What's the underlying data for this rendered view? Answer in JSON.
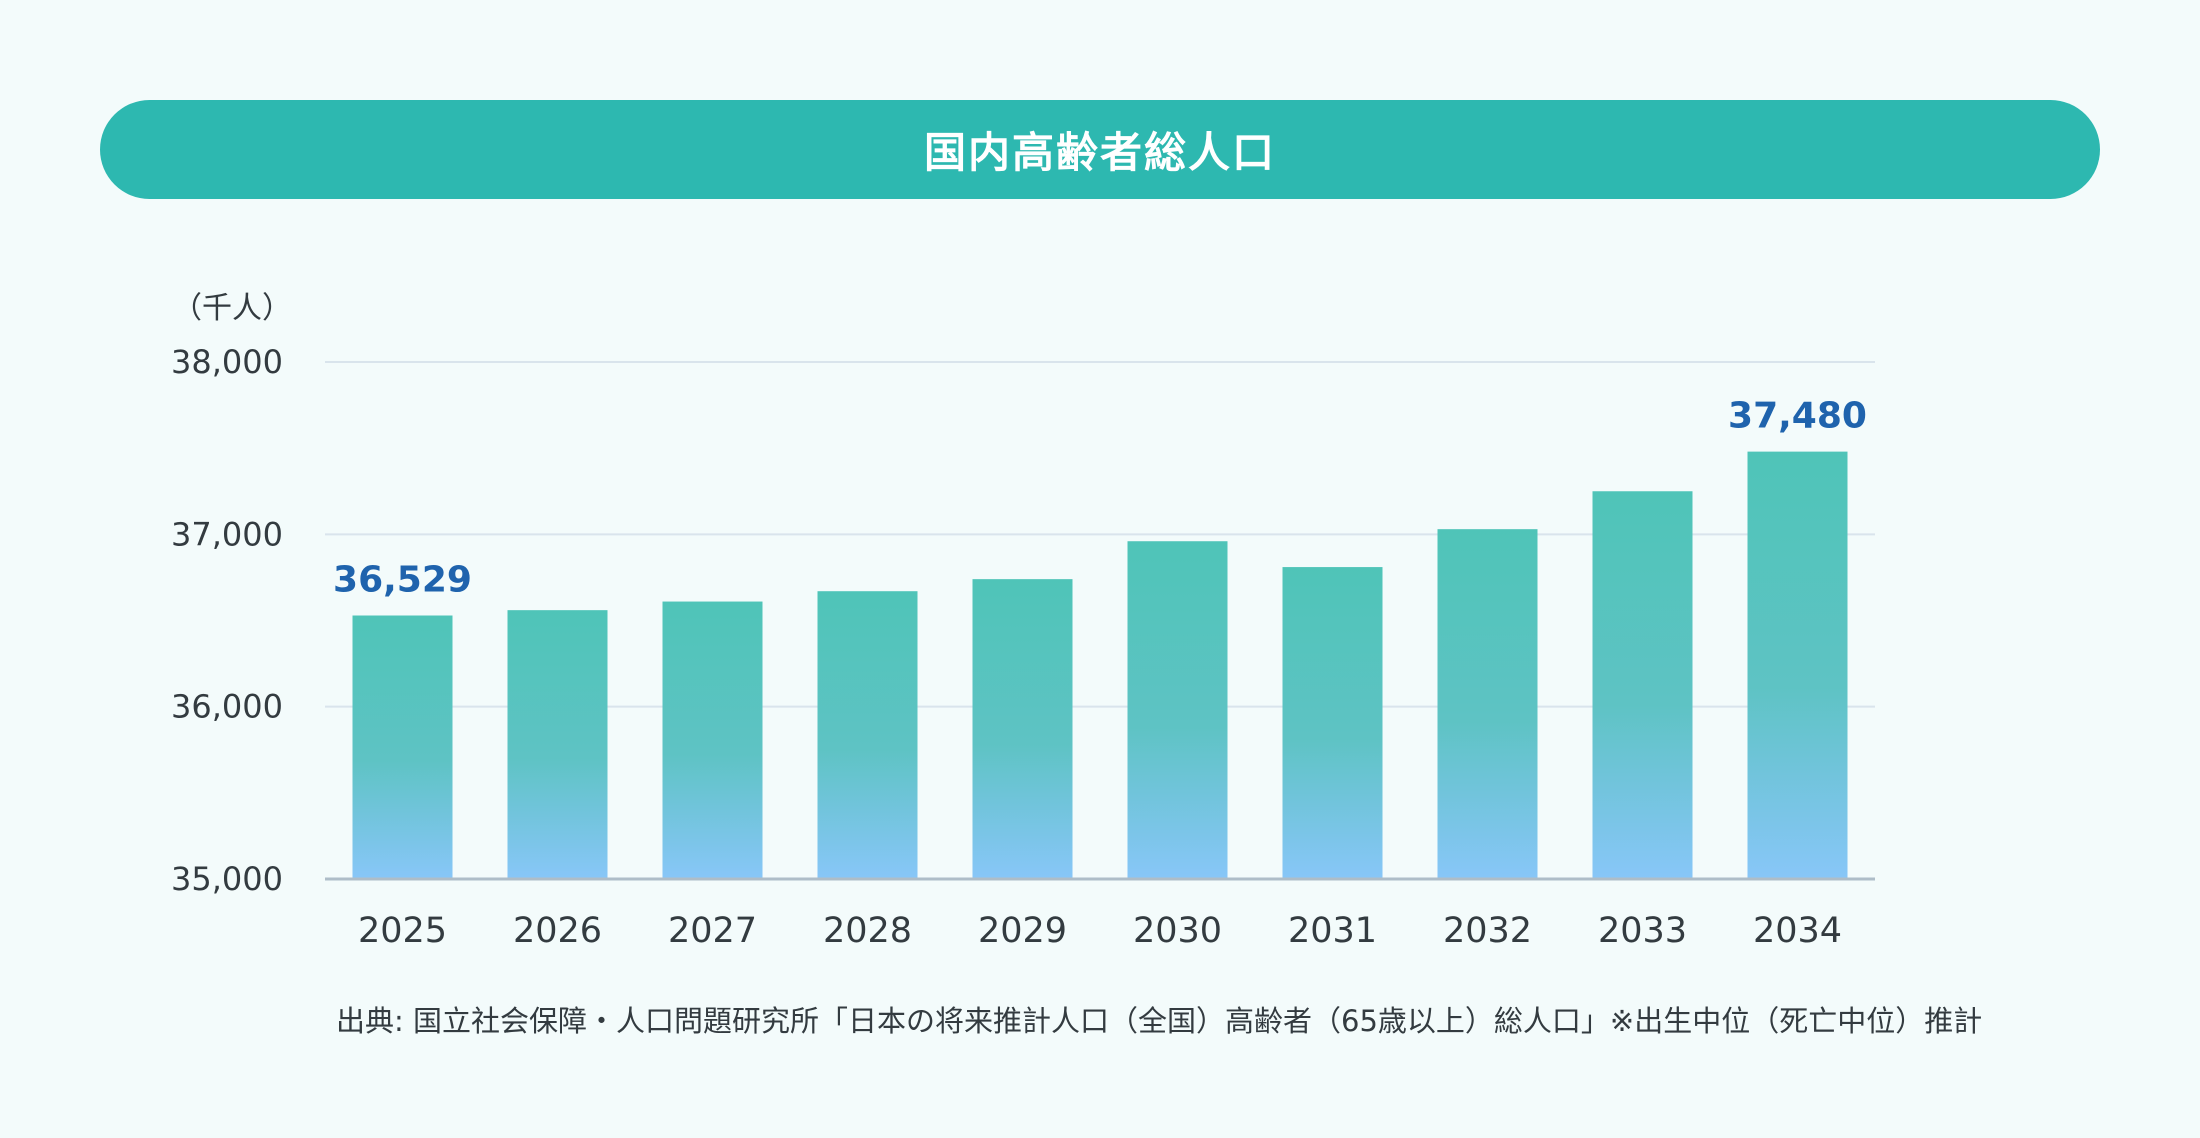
{
  "chart_data": {
    "type": "bar",
    "title": "国内高齢者総人口",
    "unit_label": "（千人）",
    "categories": [
      "2025",
      "2026",
      "2027",
      "2028",
      "2029",
      "2030",
      "2031",
      "2032",
      "2033",
      "2034"
    ],
    "values": [
      36529,
      36560,
      36610,
      36670,
      36740,
      36960,
      36810,
      37030,
      37250,
      37480
    ],
    "data_labels": [
      {
        "index": 0,
        "text": "36,529"
      },
      {
        "index": 9,
        "text": "37,480"
      }
    ],
    "ylim": [
      35000,
      38000
    ],
    "y_ticks": [
      {
        "value": 35000,
        "label": "35,000"
      },
      {
        "value": 36000,
        "label": "36,000"
      },
      {
        "value": 37000,
        "label": "37,000"
      },
      {
        "value": 38000,
        "label": "38,000"
      }
    ],
    "grid": true,
    "colors": {
      "banner": "#2db8b0",
      "bar_top": "#4fc4b8",
      "bar_bottom": "#88c6f8",
      "data_label": "#1f63ad",
      "grid": "#d9e4ec",
      "axis": "#aebdc8",
      "text": "#333b40"
    },
    "source": "出典: 国立社会保障・人口問題研究所「日本の将来推計人口（全国）高齢者（65歳以上）総人口」※出生中位（死亡中位）推計"
  }
}
